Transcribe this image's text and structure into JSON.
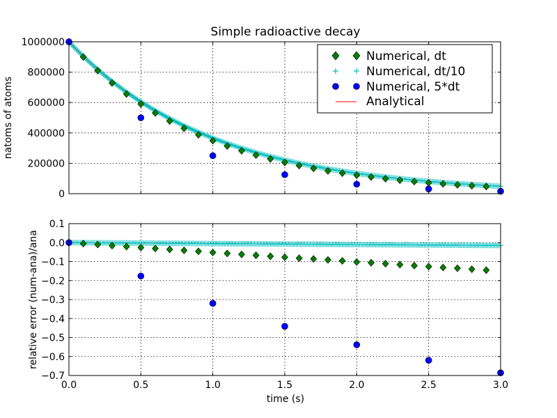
{
  "chart_data": [
    {
      "type": "scatter",
      "title": "Simple radioactive decay",
      "xlabel": "",
      "ylabel": "natoms of atoms",
      "xlim": [
        0,
        3.0
      ],
      "ylim": [
        0,
        1000000
      ],
      "xticks": [
        0.0,
        0.5,
        1.0,
        1.5,
        2.0,
        2.5,
        3.0
      ],
      "yticks": [
        0,
        200000,
        400000,
        600000,
        800000,
        1000000
      ],
      "ytick_labels": [
        "0",
        "200000",
        "400000",
        "600000",
        "800000",
        "1000000"
      ],
      "grid": true,
      "legend": {
        "position": "top-right",
        "entries": [
          {
            "label": "Numerical, dt",
            "marker": "diamond",
            "color": "#008000"
          },
          {
            "label": "Numerical, dt/10",
            "marker": "plus",
            "color": "#00bfbf"
          },
          {
            "label": "Numerical, 5*dt",
            "marker": "circle",
            "color": "#0000ff"
          },
          {
            "label": "Analytical",
            "marker": "line",
            "color": "#ff0000"
          }
        ]
      },
      "series": [
        {
          "name": "Numerical, dt",
          "marker": "diamond",
          "color": "#008000",
          "x": [
            0.0,
            0.1,
            0.2,
            0.3,
            0.4,
            0.5,
            0.6,
            0.7,
            0.8,
            0.9,
            1.0,
            1.1,
            1.2,
            1.3,
            1.4,
            1.5,
            1.6,
            1.7,
            1.8,
            1.9,
            2.0,
            2.1,
            2.2,
            2.3,
            2.4,
            2.5,
            2.6,
            2.7,
            2.8,
            2.9
          ],
          "y": [
            1000000,
            900000,
            810000,
            729000,
            656100,
            590490,
            531441,
            478297,
            430467,
            387420,
            348678,
            313811,
            282430,
            254187,
            228768,
            205891,
            185302,
            166772,
            150095,
            135085,
            121577,
            109419,
            98477,
            88629,
            79766,
            71790,
            64611,
            58150,
            52335,
            47101
          ]
        },
        {
          "name": "Numerical, dt/10",
          "marker": "plus",
          "color": "#00bfbf",
          "x_range": [
            0.0,
            3.0
          ],
          "x_step": 0.01,
          "decay_per_step": 0.99
        },
        {
          "name": "Numerical, 5*dt",
          "marker": "circle",
          "color": "#0000ff",
          "x": [
            0.0,
            0.5,
            1.0,
            1.5,
            2.0,
            2.5,
            3.0
          ],
          "y": [
            1000000,
            500000,
            250000,
            125000,
            62500,
            31250,
            15625
          ]
        },
        {
          "name": "Analytical",
          "marker": "line",
          "color": "#ff0000",
          "x_range": [
            0.0,
            3.0
          ],
          "decay_rate": 1.0
        }
      ]
    },
    {
      "type": "scatter",
      "title": "",
      "xlabel": "time (s)",
      "ylabel": "relative error (num-ana)/ana",
      "xlim": [
        0,
        3.0
      ],
      "ylim": [
        -0.7,
        0.1
      ],
      "xticks": [
        0.0,
        0.5,
        1.0,
        1.5,
        2.0,
        2.5,
        3.0
      ],
      "xtick_labels": [
        "0.0",
        "0.5",
        "1.0",
        "1.5",
        "2.0",
        "2.5",
        "3.0"
      ],
      "yticks": [
        0.1,
        0.0,
        -0.1,
        -0.2,
        -0.3,
        -0.4,
        -0.5,
        -0.6,
        -0.7
      ],
      "ytick_labels": [
        "0.1",
        "0.0",
        "−0.1",
        "−0.2",
        "−0.3",
        "−0.4",
        "−0.5",
        "−0.6",
        "−0.7"
      ],
      "grid": true,
      "series": [
        {
          "name": "Numerical, dt",
          "marker": "diamond",
          "color": "#008000",
          "x": [
            0.0,
            0.1,
            0.2,
            0.3,
            0.4,
            0.5,
            0.6,
            0.7,
            0.8,
            0.9,
            1.0,
            1.1,
            1.2,
            1.3,
            1.4,
            1.5,
            1.6,
            1.7,
            1.8,
            1.9,
            2.0,
            2.1,
            2.2,
            2.3,
            2.4,
            2.5,
            2.6,
            2.7,
            2.8,
            2.9
          ],
          "y": [
            0,
            -0.005,
            -0.01,
            -0.016,
            -0.021,
            -0.026,
            -0.031,
            -0.036,
            -0.041,
            -0.046,
            -0.052,
            -0.057,
            -0.062,
            -0.067,
            -0.072,
            -0.077,
            -0.082,
            -0.086,
            -0.091,
            -0.096,
            -0.102,
            -0.106,
            -0.111,
            -0.116,
            -0.121,
            -0.126,
            -0.131,
            -0.135,
            -0.14,
            -0.145
          ]
        },
        {
          "name": "Numerical, dt/10",
          "marker": "plus",
          "color": "#00bfbf",
          "x_range": [
            0.0,
            3.0
          ],
          "x_step": 0.01,
          "decay_per_step": 0.99
        },
        {
          "name": "Numerical, 5*dt",
          "marker": "circle",
          "color": "#0000ff",
          "x": [
            0.0,
            0.5,
            1.0,
            1.5,
            2.0,
            2.5,
            3.0
          ],
          "y": [
            0,
            -0.176,
            -0.32,
            -0.441,
            -0.538,
            -0.62,
            -0.686
          ]
        }
      ]
    }
  ]
}
